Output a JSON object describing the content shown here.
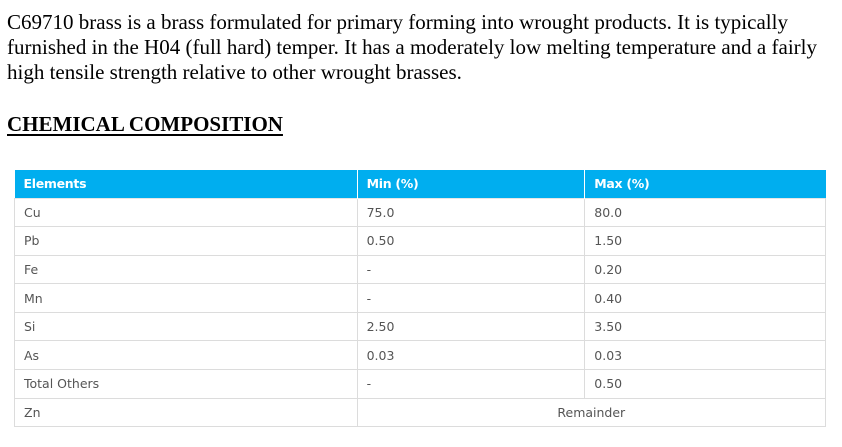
{
  "intro": {
    "text": "C69710 brass is a brass formulated for primary forming into wrought products. It is typically furnished in the H04 (full hard) temper. It has a moderately low melting temperature and a fairly high tensile strength relative to other wrought brasses."
  },
  "section": {
    "heading": "CHEMICAL COMPOSITION"
  },
  "table": {
    "headers": [
      "Elements",
      "Min (%)",
      "Max (%)"
    ],
    "rows": [
      {
        "element": "Cu",
        "min": "75.0",
        "max": "80.0"
      },
      {
        "element": "Pb",
        "min": "0.50",
        "max": "1.50"
      },
      {
        "element": "Fe",
        "min": "-",
        "max": "0.20"
      },
      {
        "element": "Mn",
        "min": "-",
        "max": "0.40"
      },
      {
        "element": "Si",
        "min": "2.50",
        "max": "3.50"
      },
      {
        "element": "As",
        "min": "0.03",
        "max": "0.03"
      },
      {
        "element": "Total Others",
        "min": "-",
        "max": "0.50"
      }
    ],
    "remainder_row": {
      "element": "Zn",
      "value": "Remainder"
    },
    "header_color": "#00aeef"
  }
}
